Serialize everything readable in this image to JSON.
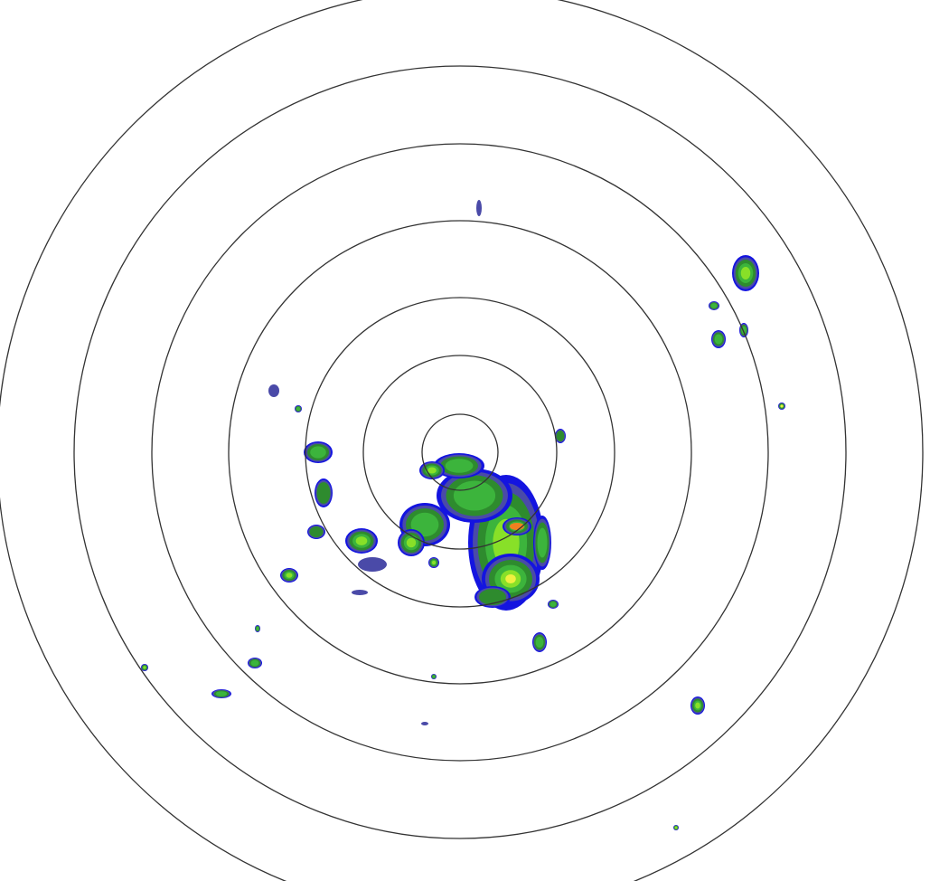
{
  "radar": {
    "ring_color": "#333333",
    "ring_count": 7,
    "background": "#ffffff",
    "reflectivity_palette": {
      "light_blue": "#20c0ff",
      "blue": "#1414e0",
      "slate": "#4a4aa8",
      "dark_green": "#2e8b2e",
      "green": "#3cb43c",
      "lime": "#88e028",
      "yellow": "#f0f040",
      "orange": "#f08020"
    }
  }
}
